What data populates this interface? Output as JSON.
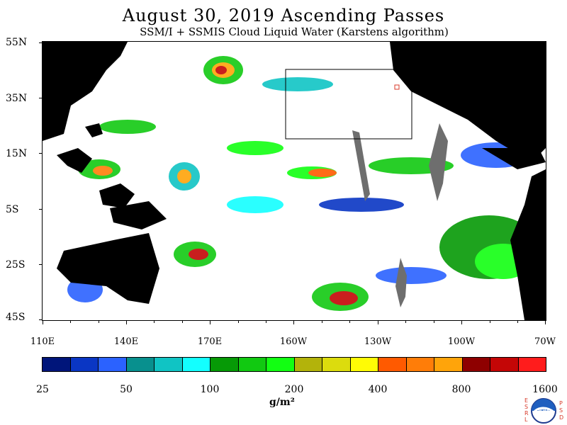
{
  "title": "August 30, 2019  Ascending Passes",
  "subtitle": "SSM/I + SSMIS Cloud Liquid Water (Karstens algorithm)",
  "lat_labels": [
    "55N",
    "35N",
    "15N",
    "5S",
    "25S",
    "45S"
  ],
  "lon_labels": [
    "110E",
    "140E",
    "170E",
    "160W",
    "130W",
    "100W",
    "70W"
  ],
  "colorbar": {
    "colors": [
      "#00157a",
      "#0a36c4",
      "#2b62ff",
      "#08908e",
      "#10c4c4",
      "#13ffff",
      "#069a06",
      "#11c911",
      "#12ff12",
      "#b3b30b",
      "#dcdc0d",
      "#fffb05",
      "#ff5a00",
      "#ff7d08",
      "#ffa40a",
      "#8e0000",
      "#c40606",
      "#ff1c1c"
    ],
    "labels": [
      "25",
      "50",
      "100",
      "200",
      "400",
      "800",
      "1600"
    ]
  },
  "units": "g/m²",
  "logo": {
    "left_letters": "ESRL",
    "right_letters": "PSD",
    "center_text": "NOAA"
  },
  "colors": {
    "land": "#000000",
    "no_data": "#6e6e6e",
    "background": "#ffffff"
  }
}
